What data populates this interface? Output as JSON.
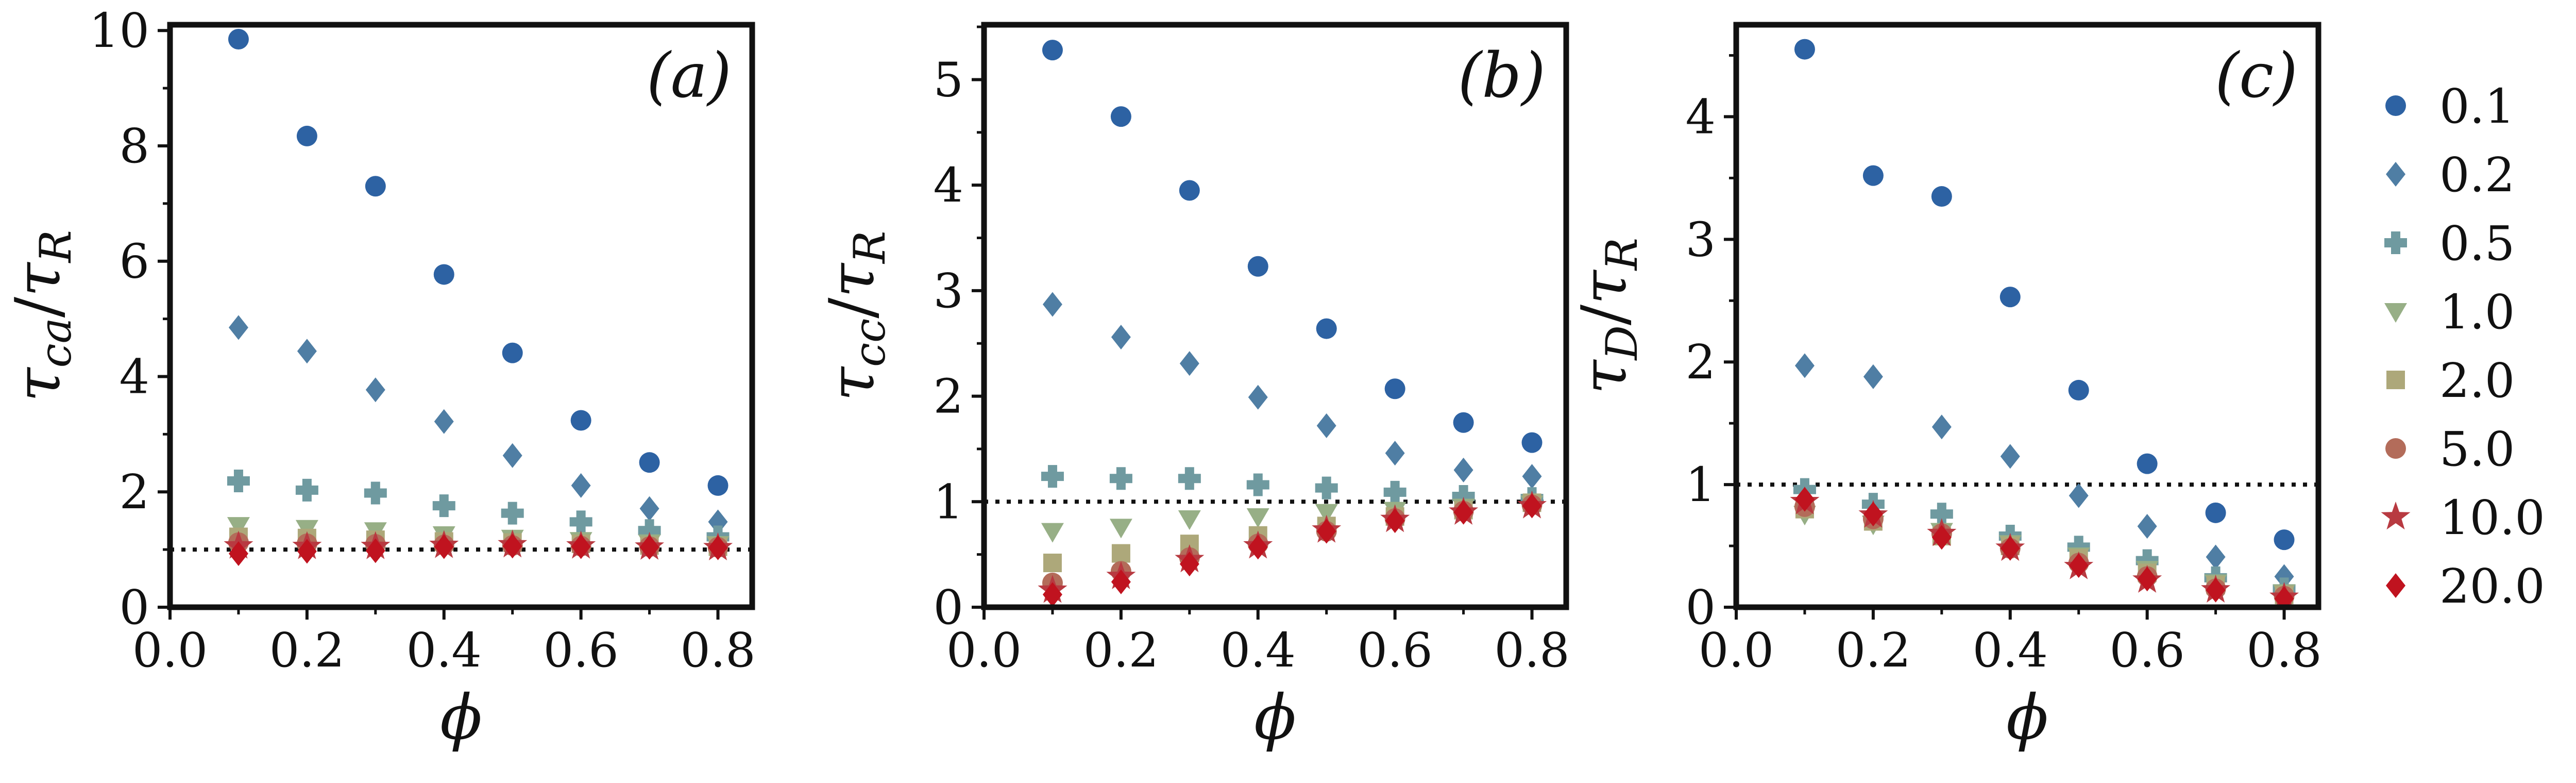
{
  "legend": {
    "position": "right",
    "items": [
      {
        "key": "s0.1",
        "label": "0.1",
        "marker": "circle",
        "color": "#2d62a3"
      },
      {
        "key": "s0.2",
        "label": "0.2",
        "marker": "diamond",
        "color": "#4f7ea4"
      },
      {
        "key": "s0.5",
        "label": "0.5",
        "marker": "plus",
        "color": "#6f9aa0"
      },
      {
        "key": "s1.0",
        "label": "1.0",
        "marker": "triangle-down",
        "color": "#97af86"
      },
      {
        "key": "s2.0",
        "label": "2.0",
        "marker": "square",
        "color": "#ada87a"
      },
      {
        "key": "s5.0",
        "label": "5.0",
        "marker": "circle",
        "color": "#b36c5a"
      },
      {
        "key": "s10.0",
        "label": "10.0",
        "marker": "star",
        "color": "#b83a41"
      },
      {
        "key": "s20.0",
        "label": "20.0",
        "marker": "diamond",
        "color": "#c0131f"
      }
    ]
  },
  "chart_data": [
    {
      "type": "scatter",
      "panel_label": "(a)",
      "xlabel": "ϕ",
      "ylabel_main": "τ",
      "ylabel_sub": "ca",
      "ylabel_den": "τ",
      "ylabel_den_sub": "R",
      "xlim": [
        0.0,
        0.85
      ],
      "ylim": [
        0,
        10.1
      ],
      "xticks": [
        "0.0",
        "0.2",
        "0.4",
        "0.6",
        "0.8"
      ],
      "xtick_values": [
        0.0,
        0.2,
        0.4,
        0.6,
        0.8
      ],
      "yticks": [
        "0",
        "2",
        "4",
        "6",
        "8",
        "10"
      ],
      "ytick_values": [
        0,
        2,
        4,
        6,
        8,
        10
      ],
      "reference_line": 1.0,
      "x": [
        0.1,
        0.2,
        0.3,
        0.4,
        0.5,
        0.6,
        0.7,
        0.8
      ],
      "series": [
        {
          "name": "0.1",
          "values": [
            9.85,
            8.17,
            7.3,
            5.77,
            4.41,
            3.24,
            2.51,
            2.11
          ]
        },
        {
          "name": "0.2",
          "values": [
            4.85,
            4.44,
            3.77,
            3.22,
            2.63,
            2.11,
            1.71,
            1.48
          ]
        },
        {
          "name": "0.5",
          "values": [
            2.19,
            2.03,
            1.98,
            1.76,
            1.63,
            1.48,
            1.33,
            1.22
          ]
        },
        {
          "name": "1.0",
          "values": [
            1.42,
            1.37,
            1.33,
            1.26,
            1.2,
            1.16,
            1.12,
            1.09
          ]
        },
        {
          "name": "2.0",
          "values": [
            1.22,
            1.2,
            1.17,
            1.14,
            1.12,
            1.1,
            1.07,
            1.05
          ]
        },
        {
          "name": "5.0",
          "values": [
            1.12,
            1.1,
            1.09,
            1.08,
            1.07,
            1.06,
            1.05,
            1.04
          ]
        },
        {
          "name": "10.0",
          "values": [
            1.06,
            1.05,
            1.05,
            1.07,
            1.08,
            1.06,
            1.04,
            1.03
          ]
        },
        {
          "name": "20.0",
          "values": [
            0.93,
            0.97,
            0.98,
            1.05,
            1.06,
            1.05,
            1.04,
            1.03
          ]
        }
      ]
    },
    {
      "type": "scatter",
      "panel_label": "(b)",
      "xlabel": "ϕ",
      "ylabel_main": "τ",
      "ylabel_sub": "cc",
      "ylabel_den": "τ",
      "ylabel_den_sub": "R",
      "xlim": [
        0.0,
        0.85
      ],
      "ylim": [
        0,
        5.52
      ],
      "xticks": [
        "0.0",
        "0.2",
        "0.4",
        "0.6",
        "0.8"
      ],
      "xtick_values": [
        0.0,
        0.2,
        0.4,
        0.6,
        0.8
      ],
      "yticks": [
        "0",
        "1",
        "2",
        "3",
        "4",
        "5"
      ],
      "ytick_values": [
        0,
        1,
        2,
        3,
        4,
        5
      ],
      "reference_line": 1.0,
      "x": [
        0.1,
        0.2,
        0.3,
        0.4,
        0.5,
        0.6,
        0.7,
        0.8
      ],
      "series": [
        {
          "name": "0.1",
          "values": [
            5.28,
            4.65,
            3.95,
            3.23,
            2.64,
            2.07,
            1.75,
            1.56
          ]
        },
        {
          "name": "0.2",
          "values": [
            2.87,
            2.56,
            2.31,
            1.99,
            1.72,
            1.46,
            1.3,
            1.24
          ]
        },
        {
          "name": "0.5",
          "values": [
            1.24,
            1.22,
            1.22,
            1.16,
            1.13,
            1.09,
            1.05,
            1.03
          ]
        },
        {
          "name": "1.0",
          "values": [
            0.72,
            0.76,
            0.84,
            0.86,
            0.9,
            0.92,
            0.95,
            0.98
          ]
        },
        {
          "name": "2.0",
          "values": [
            0.42,
            0.51,
            0.6,
            0.68,
            0.77,
            0.86,
            0.92,
            0.99
          ]
        },
        {
          "name": "5.0",
          "values": [
            0.23,
            0.34,
            0.47,
            0.6,
            0.72,
            0.84,
            0.91,
            0.97
          ]
        },
        {
          "name": "10.0",
          "values": [
            0.16,
            0.29,
            0.45,
            0.58,
            0.73,
            0.83,
            0.9,
            0.96
          ]
        },
        {
          "name": "20.0",
          "values": [
            0.12,
            0.24,
            0.41,
            0.57,
            0.72,
            0.82,
            0.9,
            0.96
          ]
        }
      ]
    },
    {
      "type": "scatter",
      "panel_label": "(c)",
      "xlabel": "ϕ",
      "ylabel_main": "τ",
      "ylabel_sub": "D",
      "ylabel_den": "τ",
      "ylabel_den_sub": "R",
      "xlim": [
        0.0,
        0.85
      ],
      "ylim": [
        0,
        4.75
      ],
      "xticks": [
        "0.0",
        "0.2",
        "0.4",
        "0.6",
        "0.8"
      ],
      "xtick_values": [
        0.0,
        0.2,
        0.4,
        0.6,
        0.8
      ],
      "yticks": [
        "0",
        "1",
        "2",
        "3",
        "4"
      ],
      "ytick_values": [
        0,
        1,
        2,
        3,
        4
      ],
      "reference_line": 1.0,
      "x": [
        0.1,
        0.2,
        0.3,
        0.4,
        0.5,
        0.6,
        0.7,
        0.8
      ],
      "series": [
        {
          "name": "0.1",
          "values": [
            4.55,
            3.52,
            3.35,
            2.53,
            1.77,
            1.17,
            0.77,
            0.55
          ]
        },
        {
          "name": "0.2",
          "values": [
            1.97,
            1.88,
            1.47,
            1.23,
            0.91,
            0.66,
            0.41,
            0.25
          ]
        },
        {
          "name": "0.5",
          "values": [
            0.96,
            0.84,
            0.76,
            0.58,
            0.49,
            0.38,
            0.24,
            0.15
          ]
        },
        {
          "name": "1.0",
          "values": [
            0.76,
            0.68,
            0.62,
            0.52,
            0.42,
            0.31,
            0.2,
            0.12
          ]
        },
        {
          "name": "2.0",
          "values": [
            0.8,
            0.7,
            0.58,
            0.5,
            0.4,
            0.28,
            0.18,
            0.1
          ]
        },
        {
          "name": "5.0",
          "values": [
            0.82,
            0.72,
            0.6,
            0.48,
            0.36,
            0.25,
            0.15,
            0.09
          ]
        },
        {
          "name": "10.0",
          "values": [
            0.86,
            0.75,
            0.6,
            0.48,
            0.33,
            0.22,
            0.14,
            0.08
          ]
        },
        {
          "name": "20.0",
          "values": [
            0.88,
            0.76,
            0.57,
            0.48,
            0.34,
            0.23,
            0.14,
            0.07
          ]
        }
      ]
    }
  ]
}
